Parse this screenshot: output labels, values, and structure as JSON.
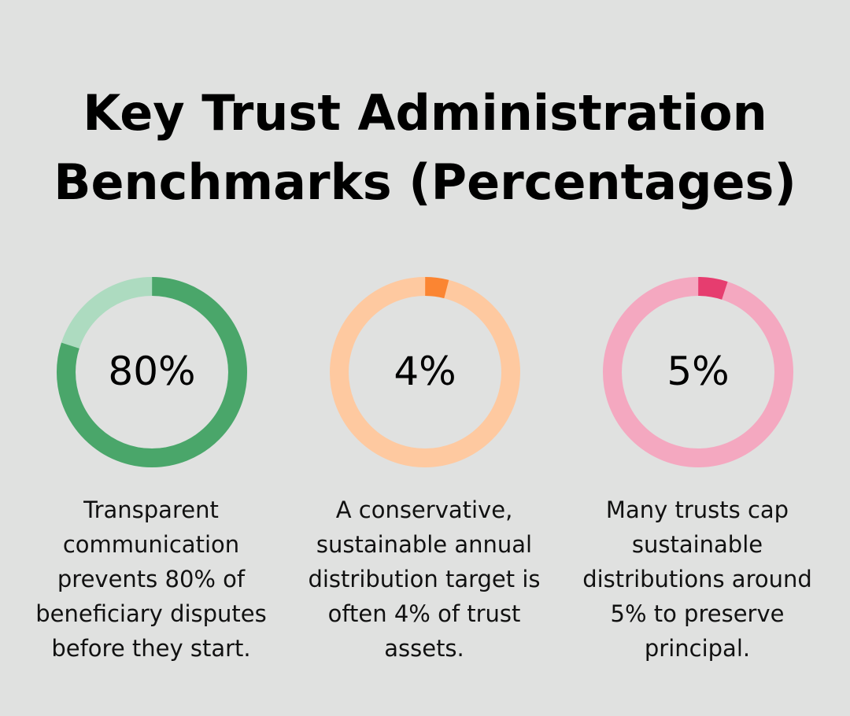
{
  "title": {
    "line1": "Key Trust Administration",
    "line2": "Benchmarks (Percentages)"
  },
  "chart_data": [
    {
      "type": "pie",
      "value": 80,
      "label": "80%",
      "caption": "Transparent communication prevents 80% of beneficiary disputes before they start.",
      "colors": {
        "filled": "#4aa66a",
        "remaining": "#addbc0"
      }
    },
    {
      "type": "pie",
      "value": 4,
      "label": "4%",
      "caption": "A conservative, sustainable annual distribution target is often 4% of trust assets.",
      "colors": {
        "filled": "#fb8532",
        "remaining": "#fec9a0"
      }
    },
    {
      "type": "pie",
      "value": 5,
      "label": "5%",
      "caption": "Many trusts cap sustainable distributions around 5% to preserve principal.",
      "colors": {
        "filled": "#e63d6f",
        "remaining": "#f4a8c0"
      }
    }
  ]
}
